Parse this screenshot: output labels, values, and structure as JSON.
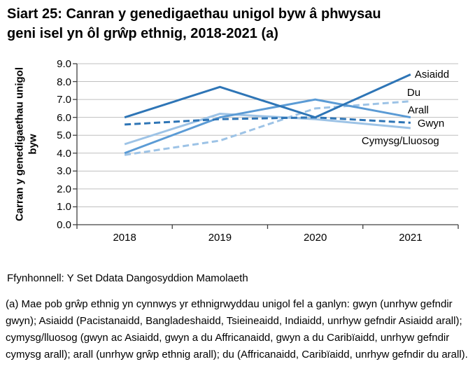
{
  "header": {
    "title_lines": [
      "Siart 25: Canran y genedigaethau unigol byw â phwysau",
      "geni isel yn ôl grŵp ethnig, 2018-2021 (a)"
    ]
  },
  "chart_data": {
    "type": "line",
    "title": "Siart 25: Canran y genedigaethau unigol byw â phwysau geni isel yn ôl grŵp ethnig, 2018-2021 (a)",
    "categories": [
      "2018",
      "2019",
      "2020",
      "2021"
    ],
    "series": [
      {
        "name": "Cymysg/Lluosog",
        "values": [
          4.5,
          6.2,
          5.9,
          5.4
        ],
        "color": "#9DC3E6",
        "style": "solid"
      },
      {
        "name": "Du",
        "values": [
          3.9,
          4.7,
          6.5,
          6.9
        ],
        "color": "#9DC3E6",
        "style": "dashed"
      },
      {
        "name": "Arall",
        "values": [
          4.0,
          6.0,
          7.0,
          6.0
        ],
        "color": "#5B9BD5",
        "style": "solid"
      },
      {
        "name": "Gwyn",
        "values": [
          5.6,
          5.9,
          6.0,
          5.7
        ],
        "color": "#2E75B6",
        "style": "dashed"
      },
      {
        "name": "Asiaidd",
        "values": [
          6.0,
          7.7,
          6.0,
          8.4
        ],
        "color": "#2E75B6",
        "style": "solid"
      }
    ],
    "xlabel": "",
    "ylabel": "Carran y genedigaethau unigol byw",
    "ylim": [
      0.0,
      9.0
    ],
    "ytick_labels": [
      "0.0",
      "1.0",
      "2.0",
      "3.0",
      "4.0",
      "5.0",
      "6.0",
      "7.0",
      "8.0",
      "9.0"
    ],
    "grid": true,
    "gridline_color": "#BFBFBF",
    "axis_color": "#404040",
    "legend_position": "end-of-line-labels"
  },
  "footer": {
    "source": "Ffynhonnell: Y Set Ddata Dangosyddion Mamolaeth",
    "footnote": "(a) Mae pob grŵp ethnig yn cynnwys yr ethnigrwyddau unigol fel a ganlyn: gwyn (unrhyw gefndir gwyn); Asiaidd (Pacistanaidd, Bangladeshaidd, Tsieineaidd, Indiaidd, unrhyw gefndir Asiaidd arall); cymysg/lluosog (gwyn ac Asiaidd, gwyn a du Affricanaidd, gwyn a du Caribïaidd, unrhyw gefndir cymysg arall); arall (unrhyw grŵp ethnig arall); du (Affricanaidd, Caribïaidd, unrhyw gefndir du arall)."
  }
}
